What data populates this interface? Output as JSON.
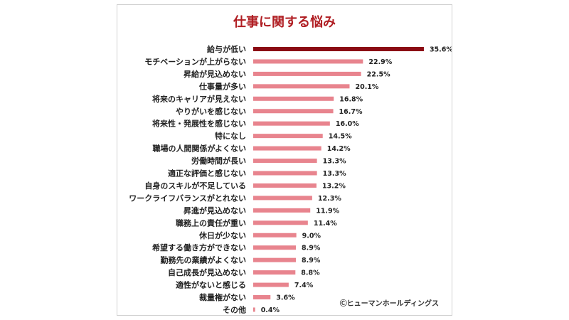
{
  "chart_data": {
    "type": "bar",
    "orientation": "horizontal",
    "title": "仕事に関する悩み",
    "categories": [
      "給与が低い",
      "モチベーションが上がらない",
      "昇給が見込めない",
      "仕事量が多い",
      "将来のキャリアが見えない",
      "やりがいを感じない",
      "将来性・発展性を感じない",
      "特になし",
      "職場の人間関係がよくない",
      "労働時間が長い",
      "適正な評価と感じない",
      "自身のスキルが不足している",
      "ワークライフバランスがとれない",
      "昇進が見込めない",
      "職務上の責任が重い",
      "休日が少ない",
      "希望する働き方ができない",
      "勤務先の業績がよくない",
      "自己成長が見込めない",
      "適性がないと感じる",
      "裁量権がない",
      "その他"
    ],
    "values": [
      35.6,
      22.9,
      22.5,
      20.1,
      16.8,
      16.7,
      16.0,
      14.5,
      14.2,
      13.3,
      13.3,
      13.2,
      12.3,
      11.9,
      11.4,
      9.0,
      8.9,
      8.9,
      8.8,
      7.4,
      3.6,
      0.4
    ],
    "value_labels": [
      "35.6%",
      "22.9%",
      "22.5%",
      "20.1%",
      "16.8%",
      "16.7%",
      "16.0%",
      "14.5%",
      "14.2%",
      "13.3%",
      "13.3%",
      "13.2%",
      "12.3%",
      "11.9%",
      "11.4%",
      "9.0%",
      "8.9%",
      "8.9%",
      "8.8%",
      "7.4%",
      "3.6%",
      "0.4%"
    ],
    "xlim": [
      0,
      40
    ],
    "colors": {
      "highlight": "#8b0a14",
      "default": "#e8848e"
    }
  },
  "copyright": "Ⓒヒューマンホールディングス"
}
